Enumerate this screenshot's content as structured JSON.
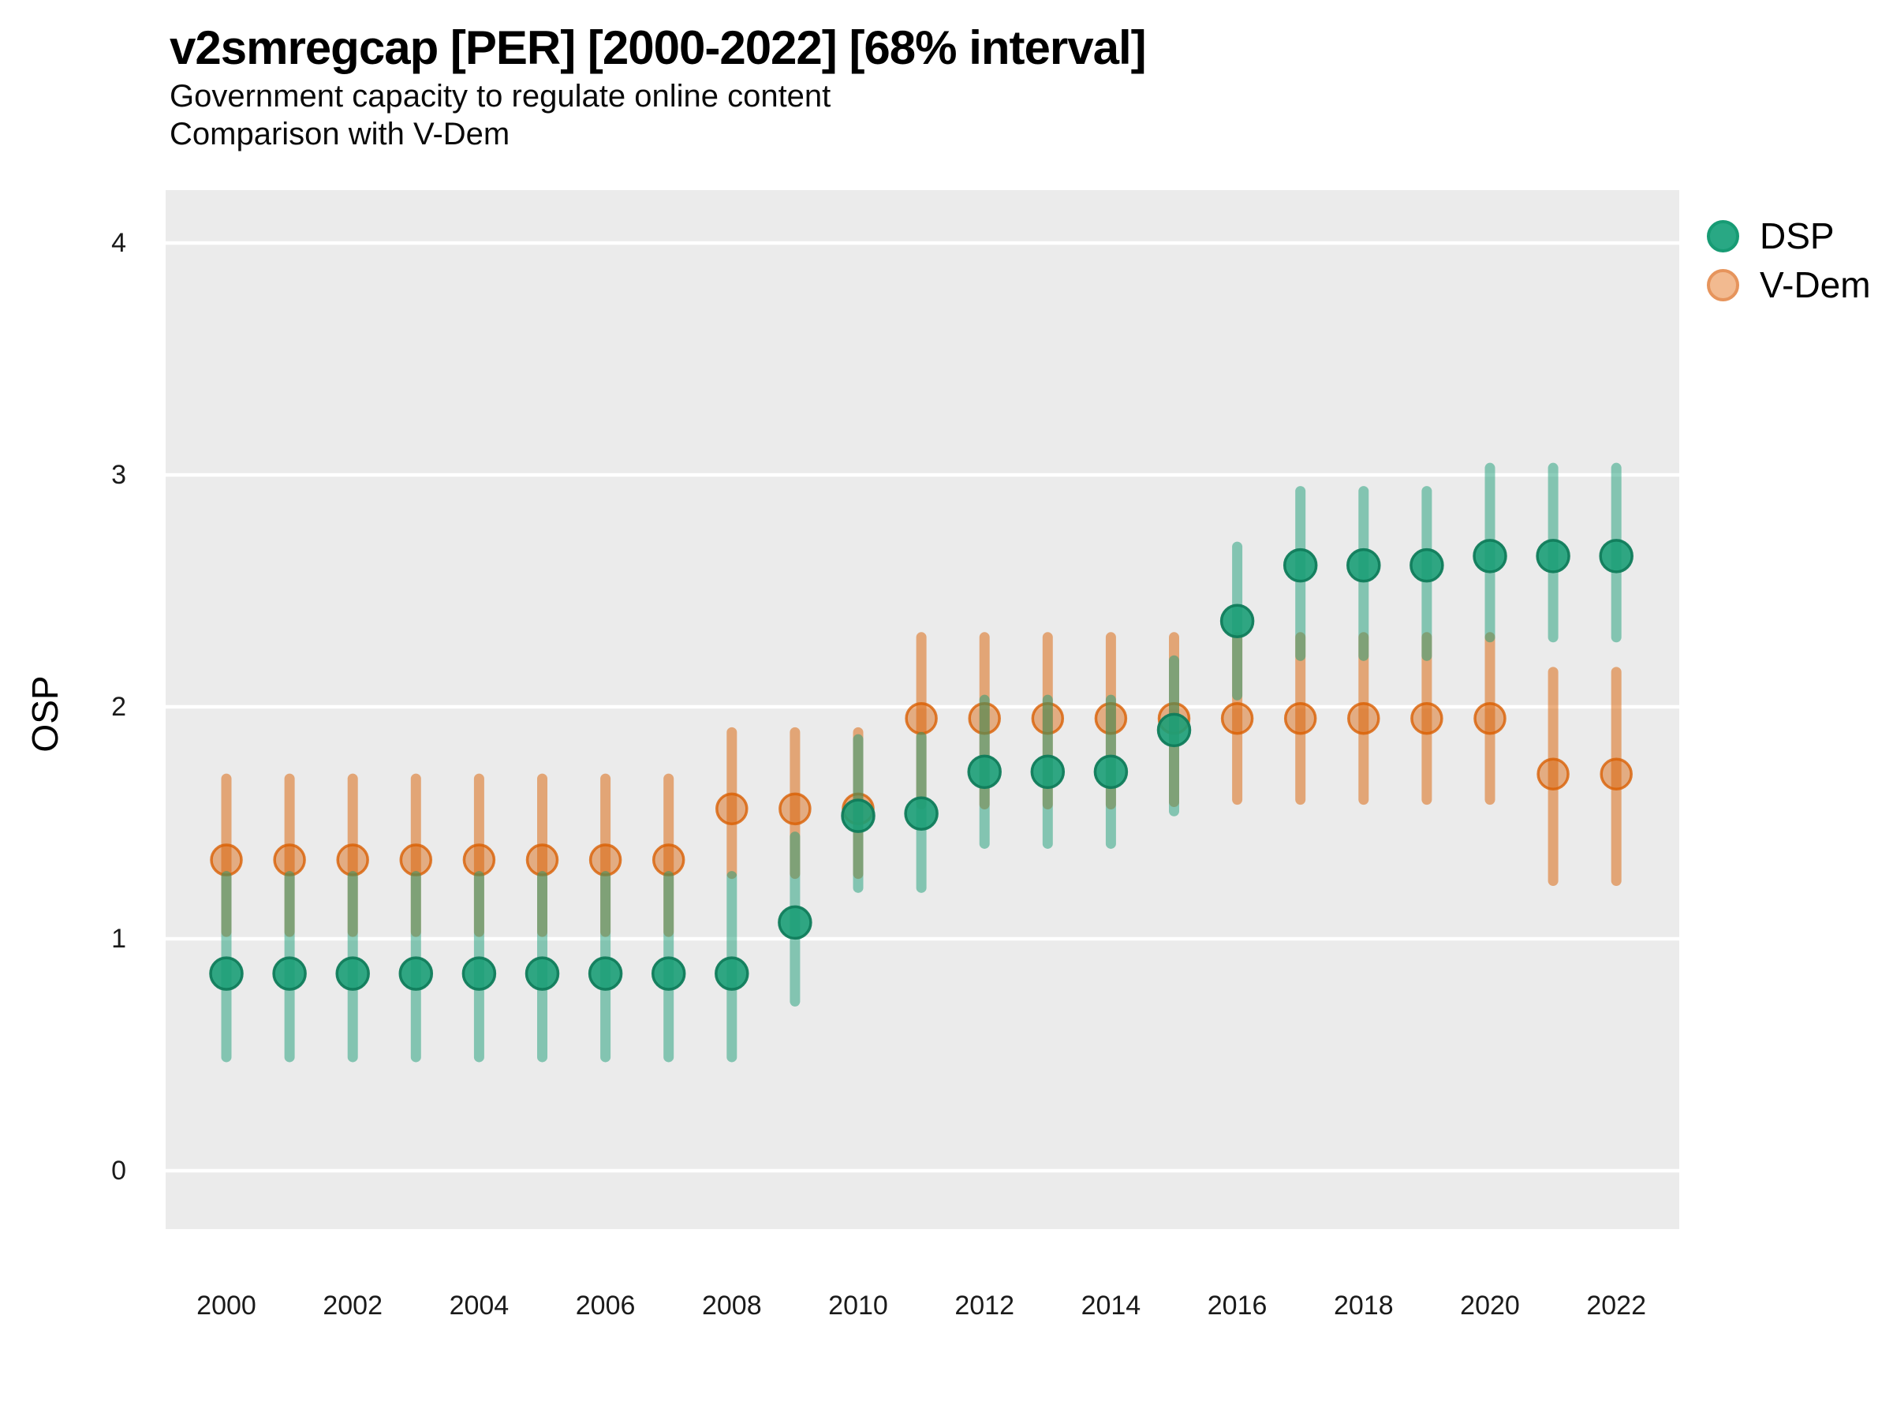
{
  "header": {
    "title": "v2smregcap [PER] [2000-2022] [68% interval]",
    "subtitle1": "Government capacity to regulate online content",
    "subtitle2": "Comparison with V-Dem"
  },
  "axes": {
    "y": {
      "title": "OSP",
      "tick_labels": [
        "0",
        "1",
        "2",
        "3",
        "4"
      ],
      "tick_values": [
        0,
        1,
        2,
        3,
        4
      ]
    },
    "x": {
      "tick_labels": [
        "2000",
        "2002",
        "2004",
        "2006",
        "2008",
        "2010",
        "2012",
        "2014",
        "2016",
        "2018",
        "2020",
        "2022"
      ],
      "tick_values": [
        2000,
        2002,
        2004,
        2006,
        2008,
        2010,
        2012,
        2014,
        2016,
        2018,
        2020,
        2022
      ]
    }
  },
  "legend": [
    {
      "label": "DSP",
      "color": "#1b9e77"
    },
    {
      "label": "V-Dem",
      "color": "#d95f02"
    }
  ],
  "colors": {
    "panel_bg": "#EBEBEB",
    "gridline": "#FFFFFF",
    "dsp": "#1b9e77",
    "vdem": "#d95f02",
    "text": "#000000"
  },
  "chart_data": {
    "type": "scatter",
    "subtype": "pointrange-errorbar",
    "title": "v2smregcap [PER] [2000-2022] [68% interval]",
    "subtitle": "Government capacity to regulate online content — Comparison with V-Dem",
    "interval": "68%",
    "xlabel": "",
    "ylabel": "OSP",
    "ylim": [
      -0.27,
      4.27
    ],
    "yticks": [
      0,
      1,
      2,
      3,
      4
    ],
    "xticks": [
      2000,
      2002,
      2004,
      2006,
      2008,
      2010,
      2012,
      2014,
      2016,
      2018,
      2020,
      2022
    ],
    "grid": "major horizontal white lines on gray panel",
    "legend_position": "right-top",
    "x": [
      2000,
      2001,
      2002,
      2003,
      2004,
      2005,
      2006,
      2007,
      2008,
      2009,
      2010,
      2011,
      2012,
      2013,
      2014,
      2015,
      2016,
      2017,
      2018,
      2019,
      2020,
      2021,
      2022
    ],
    "series": [
      {
        "name": "V-Dem",
        "color": "#d95f02",
        "values": [
          1.34,
          1.34,
          1.34,
          1.34,
          1.34,
          1.34,
          1.34,
          1.34,
          1.56,
          1.56,
          1.56,
          1.95,
          1.95,
          1.95,
          1.95,
          1.95,
          1.95,
          1.95,
          1.95,
          1.95,
          1.95,
          1.71,
          1.71
        ],
        "lower": [
          1.03,
          1.03,
          1.03,
          1.03,
          1.03,
          1.03,
          1.03,
          1.03,
          1.28,
          1.28,
          1.28,
          1.58,
          1.58,
          1.58,
          1.58,
          1.59,
          1.6,
          1.6,
          1.6,
          1.6,
          1.6,
          1.25,
          1.25
        ],
        "upper": [
          1.69,
          1.69,
          1.69,
          1.69,
          1.69,
          1.69,
          1.69,
          1.69,
          1.89,
          1.89,
          1.89,
          2.3,
          2.3,
          2.3,
          2.3,
          2.3,
          2.3,
          2.3,
          2.3,
          2.3,
          2.3,
          2.15,
          2.15
        ]
      },
      {
        "name": "DSP",
        "color": "#1b9e77",
        "values": [
          0.85,
          0.85,
          0.85,
          0.85,
          0.85,
          0.85,
          0.85,
          0.85,
          0.85,
          1.07,
          1.53,
          1.54,
          1.72,
          1.72,
          1.72,
          1.9,
          2.37,
          2.61,
          2.61,
          2.61,
          2.65,
          2.65,
          2.65
        ],
        "lower": [
          0.49,
          0.49,
          0.49,
          0.49,
          0.49,
          0.49,
          0.49,
          0.49,
          0.49,
          0.73,
          1.22,
          1.22,
          1.41,
          1.41,
          1.41,
          1.55,
          2.05,
          2.22,
          2.22,
          2.22,
          2.3,
          2.3,
          2.3
        ],
        "upper": [
          1.27,
          1.27,
          1.27,
          1.27,
          1.27,
          1.27,
          1.27,
          1.27,
          1.27,
          1.44,
          1.86,
          1.87,
          2.03,
          2.03,
          2.03,
          2.2,
          2.69,
          2.93,
          2.93,
          2.93,
          3.03,
          3.03,
          3.03
        ]
      }
    ]
  }
}
